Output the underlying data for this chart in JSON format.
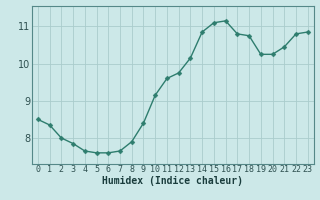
{
  "x": [
    0,
    1,
    2,
    3,
    4,
    5,
    6,
    7,
    8,
    9,
    10,
    11,
    12,
    13,
    14,
    15,
    16,
    17,
    18,
    19,
    20,
    21,
    22,
    23
  ],
  "y": [
    8.5,
    8.35,
    8.0,
    7.85,
    7.65,
    7.6,
    7.6,
    7.65,
    7.9,
    8.4,
    9.15,
    9.6,
    9.75,
    10.15,
    10.85,
    11.1,
    11.15,
    10.8,
    10.75,
    10.25,
    10.25,
    10.45,
    10.8,
    10.85
  ],
  "line_color": "#2e7d6e",
  "marker": "D",
  "marker_size": 2.5,
  "bg_color": "#cce8e8",
  "grid_color": "#aacccc",
  "xlabel": "Humidex (Indice chaleur)",
  "xlabel_fontsize": 7,
  "yticks": [
    8,
    9,
    10,
    11
  ],
  "xticks": [
    0,
    1,
    2,
    3,
    4,
    5,
    6,
    7,
    8,
    9,
    10,
    11,
    12,
    13,
    14,
    15,
    16,
    17,
    18,
    19,
    20,
    21,
    22,
    23
  ],
  "xlim": [
    -0.5,
    23.5
  ],
  "ylim": [
    7.3,
    11.55
  ],
  "tick_fontsize": 6,
  "spine_color": "#558888"
}
